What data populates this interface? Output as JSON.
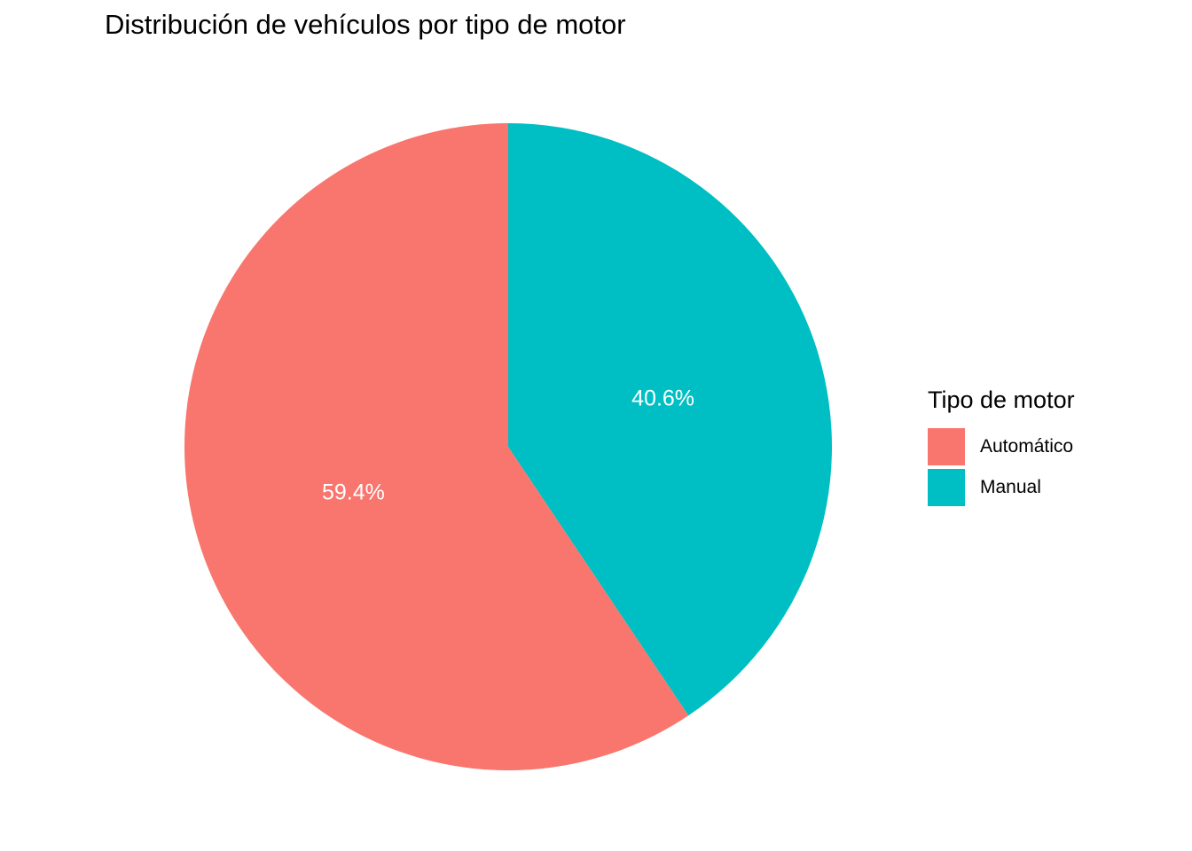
{
  "chart_data": {
    "type": "pie",
    "title": "Distribución de vehículos por tipo de motor",
    "legend_title": "Tipo de motor",
    "legend_position": "right",
    "categories": [
      "Automático",
      "Manual"
    ],
    "values": [
      59.4,
      40.6
    ],
    "labels": [
      "59.4%",
      "40.6%"
    ],
    "colors": [
      "#F8766D",
      "#00BFC4"
    ]
  }
}
